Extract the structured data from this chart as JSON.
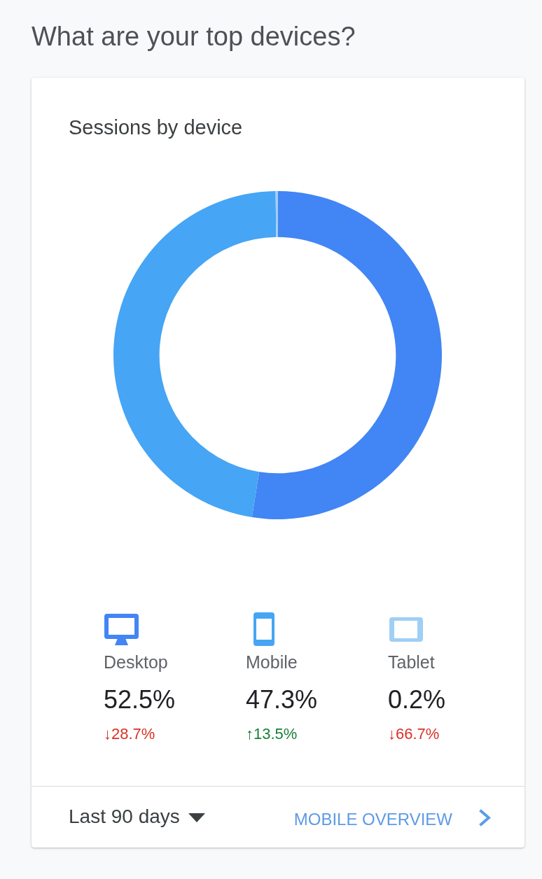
{
  "chart_data": {
    "type": "donut",
    "title": "What are your top devices?",
    "subtitle": "Sessions by device",
    "categories": [
      "Desktop",
      "Mobile",
      "Tablet"
    ],
    "values": [
      52.5,
      47.3,
      0.2
    ],
    "colors": [
      "#4285f4",
      "#46a5f4",
      "#a0cff5"
    ],
    "value_labels": [
      "52.5%",
      "47.3%",
      "0.2%"
    ],
    "legend": "bottom",
    "annotations": [
      {
        "text": "↓28.7%",
        "x": "Desktop"
      },
      {
        "text": "↑13.5%",
        "x": "Mobile"
      },
      {
        "text": "↓66.7%",
        "x": "Tablet"
      },
      "Last 90 days",
      "MOBILE OVERVIEW"
    ]
  }
}
